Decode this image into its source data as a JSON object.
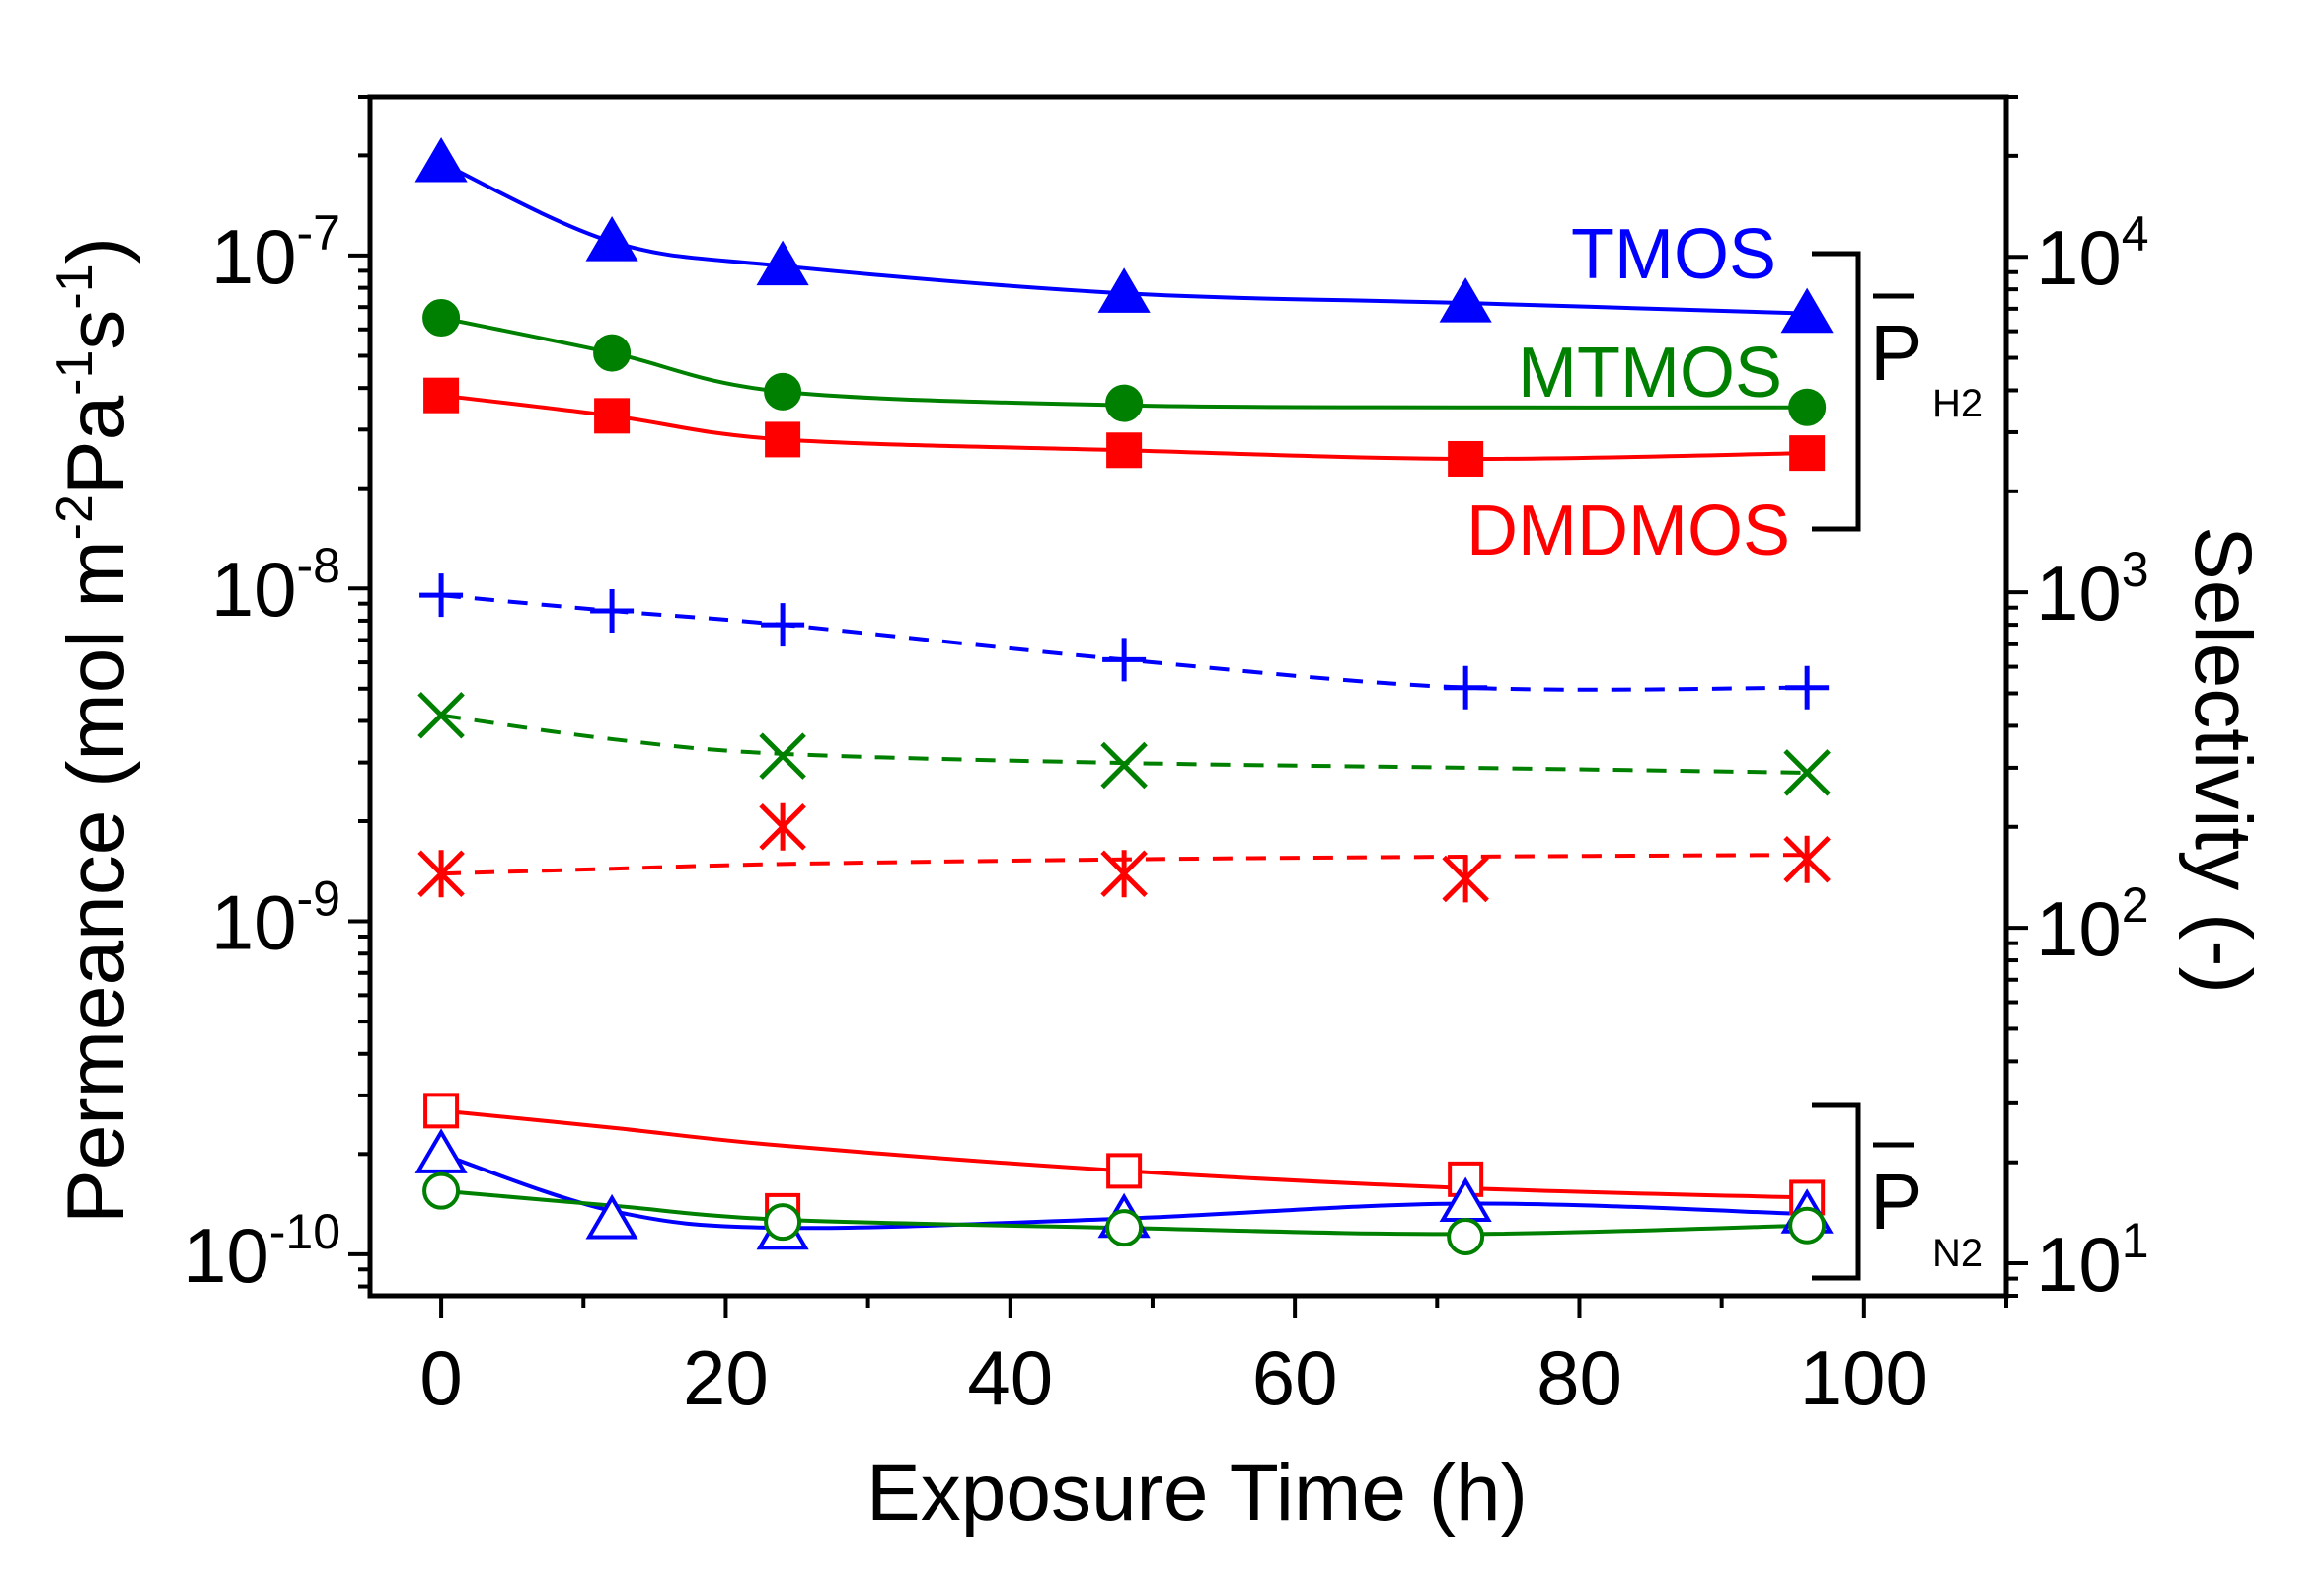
{
  "chart_data": {
    "type": "scatter",
    "xlabel": "Exposure Time (h)",
    "ylabel_left": "Permeance (mol m-2 Pa-1 s-1)",
    "ylabel_right": "Selectivity (-)",
    "xlim": [
      -5,
      110
    ],
    "xticks": [
      0,
      20,
      40,
      60,
      80,
      100
    ],
    "ylim_left": [
      7.5e-11,
      3e-07
    ],
    "ylim_right": [
      8,
      30000
    ],
    "yscale": "log",
    "left_ticks": [
      {
        "value": 1e-07,
        "base": "10",
        "exp": "-7"
      },
      {
        "value": 1e-08,
        "base": "10",
        "exp": "-8"
      },
      {
        "value": 1e-09,
        "base": "10",
        "exp": "-9"
      },
      {
        "value": 1e-10,
        "base": "10",
        "exp": "-10"
      }
    ],
    "right_ticks": [
      {
        "value": 10,
        "base": "10",
        "exp": "1"
      },
      {
        "value": 100,
        "base": "10",
        "exp": "2"
      },
      {
        "value": 1000,
        "base": "10",
        "exp": "3"
      },
      {
        "value": 10000,
        "base": "10",
        "exp": "4"
      }
    ],
    "x": [
      0,
      12,
      24,
      48,
      72,
      96
    ],
    "series": [
      {
        "name": "TMOS H2 permeance",
        "axis": "left",
        "marker": "triangle-filled",
        "line": "solid",
        "color": "#0000ff",
        "values": [
          1.9e-07,
          1.1e-07,
          9.3e-08,
          7.7e-08,
          7.2e-08,
          6.7e-08
        ]
      },
      {
        "name": "MTMOS H2 permeance",
        "axis": "left",
        "marker": "circle-filled",
        "line": "solid",
        "color": "#008000",
        "values": [
          6.5e-08,
          5.1e-08,
          3.9e-08,
          3.6e-08,
          null,
          3.5e-08
        ],
        "fit": [
          6.5e-08,
          5.1e-08,
          3.9e-08,
          3.55e-08,
          3.5e-08,
          3.5e-08
        ]
      },
      {
        "name": "DMDMOS H2 permeance",
        "axis": "left",
        "marker": "square-filled",
        "line": "solid",
        "color": "#ff0000",
        "values": [
          3.8e-08,
          3.3e-08,
          2.8e-08,
          2.6e-08,
          2.45e-08,
          2.55e-08
        ]
      },
      {
        "name": "TMOS selectivity",
        "axis": "right",
        "marker": "plus",
        "line": "dashed",
        "color": "#0000ff",
        "values": [
          980,
          880,
          800,
          630,
          520,
          520
        ]
      },
      {
        "name": "MTMOS selectivity",
        "axis": "right",
        "marker": "x",
        "line": "dashed",
        "color": "#008000",
        "values": [
          430,
          null,
          325,
          305,
          null,
          290
        ],
        "fit": [
          430,
          365,
          330,
          310,
          300,
          290
        ]
      },
      {
        "name": "DMDMOS selectivity",
        "axis": "right",
        "marker": "asterisk",
        "line": "dashed",
        "color": "#ff0000",
        "values": [
          145,
          null,
          200,
          145,
          140,
          160
        ],
        "fit": [
          145,
          150,
          155,
          160,
          163,
          165
        ]
      },
      {
        "name": "DMDMOS N2 permeance",
        "axis": "left",
        "marker": "square-open",
        "line": "solid",
        "color": "#ff0000",
        "values": [
          2.7e-10,
          null,
          1.35e-10,
          1.78e-10,
          1.68e-10,
          1.48e-10
        ],
        "fit": [
          2.7e-10,
          2.4e-10,
          2.12e-10,
          1.78e-10,
          1.58e-10,
          1.48e-10
        ]
      },
      {
        "name": "TMOS N2 permeance",
        "axis": "left",
        "marker": "triangle-open",
        "line": "solid",
        "color": "#0000ff",
        "values": [
          2e-10,
          1.27e-10,
          1.18e-10,
          1.28e-10,
          1.43e-10,
          1.32e-10
        ],
        "fit": [
          2e-10,
          1.35e-10,
          1.2e-10,
          1.28e-10,
          1.42e-10,
          1.32e-10
        ]
      },
      {
        "name": "MTMOS N2 permeance",
        "axis": "left",
        "marker": "circle-open",
        "line": "solid",
        "color": "#008000",
        "values": [
          1.55e-10,
          null,
          1.25e-10,
          1.2e-10,
          1.13e-10,
          1.22e-10
        ],
        "fit": [
          1.55e-10,
          1.4e-10,
          1.27e-10,
          1.2e-10,
          1.15e-10,
          1.22e-10
        ]
      }
    ],
    "annotations": {
      "tmos": "TMOS",
      "mtmos": "MTMOS",
      "dmdmos": "DMDMOS",
      "ph2_letter": "P",
      "ph2_sub": "H2",
      "pn2_letter": "P",
      "pn2_sub": "N2"
    },
    "colors": {
      "tmos": "#0000ff",
      "mtmos": "#008000",
      "dmdmos": "#ff0000"
    }
  }
}
